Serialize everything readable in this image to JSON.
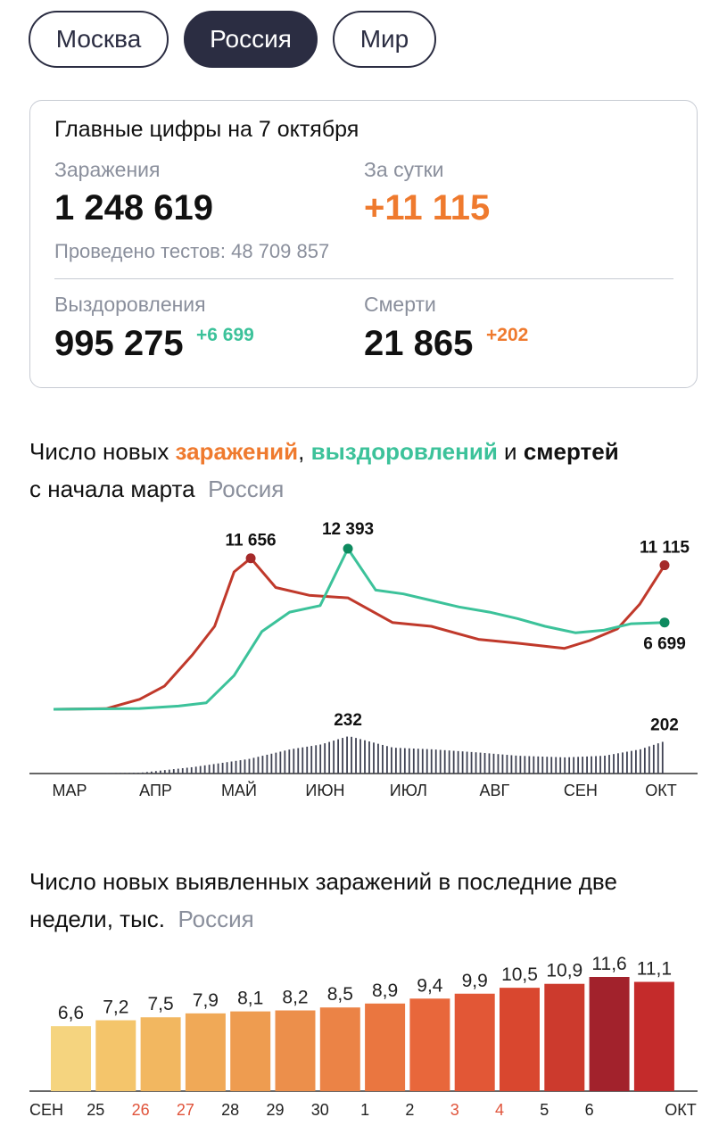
{
  "tabs": [
    "Москва",
    "Россия",
    "Мир"
  ],
  "active_tab": 1,
  "summary": {
    "title": "Главные цифры на 7 октября",
    "infections_label": "Заражения",
    "infections_value": "1 248 619",
    "daily_label": "За сутки",
    "daily_value": "+11 115",
    "tests_text": "Проведено тестов: 48 709 857",
    "recoveries_label": "Выздоровления",
    "recoveries_value": "995 275",
    "recoveries_delta": "+6 699",
    "deaths_label": "Смерти",
    "deaths_value": "21 865",
    "deaths_delta": "+202"
  },
  "colors": {
    "accent_orange": "#ef7a2e",
    "accent_green": "#3cc29a",
    "dark": "#2b2d42",
    "muted": "#8a8f9c"
  },
  "line_heading": {
    "part1": "Число новых ",
    "infections": "заражений",
    "comma": ", ",
    "recoveries": "выздоровлений",
    "and": " и ",
    "deaths": "смертей",
    "line2": "с начала марта",
    "region": "Россия"
  },
  "bar_heading": {
    "line1": "Число новых выявленных заражений в последние две",
    "line2": "недели, тыс.",
    "region": "Россия"
  },
  "chart_data": [
    {
      "type": "line",
      "x_months": [
        "МАР",
        "АПР",
        "МАЙ",
        "ИЮН",
        "ИЮЛ",
        "АВГ",
        "СЕН",
        "ОКТ"
      ],
      "series": [
        {
          "name": "заражений",
          "color": "#c0392b",
          "x": [
            "03-01",
            "03-20",
            "04-01",
            "04-10",
            "04-20",
            "04-28",
            "05-05",
            "05-11",
            "05-20",
            "06-01",
            "06-15",
            "07-01",
            "07-15",
            "08-01",
            "08-15",
            "09-01",
            "09-10",
            "09-20",
            "09-28",
            "10-07"
          ],
          "y": [
            0,
            50,
            770,
            1800,
            4200,
            6400,
            10600,
            11656,
            9400,
            8800,
            8600,
            6700,
            6400,
            5400,
            5100,
            4700,
            5300,
            6200,
            8100,
            11115
          ]
        },
        {
          "name": "выздоровлений",
          "color": "#3cc29a",
          "x": [
            "03-01",
            "04-01",
            "04-15",
            "04-25",
            "05-05",
            "05-15",
            "05-25",
            "06-05",
            "06-15",
            "06-25",
            "07-05",
            "07-15",
            "07-25",
            "08-05",
            "08-15",
            "08-25",
            "09-05",
            "09-15",
            "09-25",
            "10-07"
          ],
          "y": [
            0,
            60,
            250,
            500,
            2600,
            6000,
            7500,
            8000,
            12393,
            9200,
            8900,
            8400,
            7900,
            7500,
            7000,
            6400,
            5900,
            6100,
            6600,
            6699
          ]
        },
        {
          "name": "смертей",
          "color": "#3f4253",
          "x": [
            "03-01",
            "04-01",
            "04-20",
            "05-10",
            "05-25",
            "06-05",
            "06-15",
            "07-01",
            "07-15",
            "08-01",
            "08-15",
            "09-01",
            "09-15",
            "09-28",
            "10-07"
          ],
          "y": [
            0,
            5,
            40,
            90,
            150,
            180,
            232,
            160,
            150,
            130,
            110,
            100,
            110,
            150,
            202
          ]
        }
      ],
      "annotations": [
        {
          "text": "11 656",
          "series": "заражений",
          "date": "05-11",
          "value": 11656
        },
        {
          "text": "12 393",
          "series": "выздоровлений",
          "date": "06-15",
          "value": 12393
        },
        {
          "text": "11 115",
          "series": "заражений",
          "date": "10-07",
          "value": 11115
        },
        {
          "text": "6 699",
          "series": "выздоровлений",
          "date": "10-07",
          "value": 6699
        },
        {
          "text": "232",
          "series": "смертей",
          "date": "06-15",
          "value": 232
        },
        {
          "text": "202",
          "series": "смертей",
          "date": "10-07",
          "value": 202
        }
      ]
    },
    {
      "type": "bar",
      "unit": "тыс.",
      "categories": [
        "24 СЕН",
        "25",
        "26",
        "27",
        "28",
        "29",
        "30",
        "1",
        "2",
        "3",
        "4",
        "5",
        "6",
        "7 ОКТ"
      ],
      "tick_labels": [
        "25",
        "26",
        "27",
        "28",
        "29",
        "30",
        "1",
        "2",
        "3",
        "4",
        "5",
        "6"
      ],
      "weekend_ticks": [
        "26",
        "27",
        "3",
        "4"
      ],
      "start_label": "СЕН",
      "end_label": "ОКТ",
      "values": [
        6.6,
        7.2,
        7.5,
        7.9,
        8.1,
        8.2,
        8.5,
        8.9,
        9.4,
        9.9,
        10.5,
        10.9,
        11.6,
        11.1
      ],
      "value_labels": [
        "6,6",
        "7,2",
        "7,5",
        "7,9",
        "8,1",
        "8,2",
        "8,5",
        "8,9",
        "9,4",
        "9,9",
        "10,5",
        "10,9",
        "11,6",
        "11,1"
      ],
      "colors": [
        "#f5d47f",
        "#f4c56b",
        "#f2b760",
        "#f0a957",
        "#ee9c50",
        "#ec8f4b",
        "#eb8346",
        "#ea7640",
        "#e8673b",
        "#e25736",
        "#d9472f",
        "#cc3a2d",
        "#a2222c",
        "#c42b2b"
      ]
    }
  ]
}
